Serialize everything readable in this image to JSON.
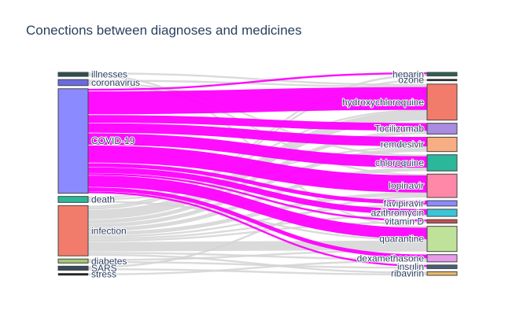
{
  "chart_data": {
    "type": "sankey",
    "title": "Conections between diagnoses and medicines",
    "highlight_color": "#ff00ff",
    "neutral_link_color": "#d3d3d3",
    "sources": [
      {
        "name": "illnesses",
        "value": 2,
        "color": "#2f4f4f"
      },
      {
        "name": "coronavirus",
        "value": 3,
        "color": "#6a6ae0"
      },
      {
        "name": "COVID-19",
        "value": 52,
        "color": "#8b8bff"
      },
      {
        "name": "death",
        "value": 3,
        "color": "#2bb89a"
      },
      {
        "name": "infection",
        "value": 25,
        "color": "#f27c6b"
      },
      {
        "name": "diabetes",
        "value": 2,
        "color": "#a4c96f"
      },
      {
        "name": "SARS",
        "value": 2,
        "color": "#3d4a5c"
      },
      {
        "name": "stress",
        "value": 1,
        "color": "#222222"
      }
    ],
    "targets": [
      {
        "name": "heparin",
        "value": 2,
        "color": "#2f5f56"
      },
      {
        "name": "ozone",
        "value": 1,
        "color": "#222222"
      },
      {
        "name": "hydroxychloroquine",
        "value": 20,
        "color": "#f27c6b"
      },
      {
        "name": "Tocilizumab",
        "value": 6,
        "color": "#a98be0"
      },
      {
        "name": "remdesivir",
        "value": 8,
        "color": "#f7ae82"
      },
      {
        "name": "chloroquine",
        "value": 9,
        "color": "#2bb89a"
      },
      {
        "name": "lopinavir",
        "value": 13,
        "color": "#ff88a8"
      },
      {
        "name": "favipiravir",
        "value": 3,
        "color": "#8b8bff"
      },
      {
        "name": "azithromycin",
        "value": 4,
        "color": "#3ac6d8"
      },
      {
        "name": "vitamin D",
        "value": 2,
        "color": "#c0504d"
      },
      {
        "name": "quarantine",
        "value": 14,
        "color": "#bfe29a"
      },
      {
        "name": "dexamethasone",
        "value": 4,
        "color": "#e89be8"
      },
      {
        "name": "insulin",
        "value": 2,
        "color": "#46607a"
      },
      {
        "name": "ribavirin",
        "value": 2,
        "color": "#e8b96a"
      }
    ],
    "links": [
      {
        "source": "illnesses",
        "target": "hydroxychloroquine",
        "value": 1
      },
      {
        "source": "illnesses",
        "target": "quarantine",
        "value": 1
      },
      {
        "source": "coronavirus",
        "target": "hydroxychloroquine",
        "value": 1
      },
      {
        "source": "coronavirus",
        "target": "chloroquine",
        "value": 1
      },
      {
        "source": "coronavirus",
        "target": "lopinavir",
        "value": 1
      },
      {
        "source": "COVID-19",
        "target": "heparin",
        "value": 1,
        "highlight": true
      },
      {
        "source": "COVID-19",
        "target": "hydroxychloroquine",
        "value": 12,
        "highlight": true
      },
      {
        "source": "COVID-19",
        "target": "Tocilizumab",
        "value": 4,
        "highlight": true
      },
      {
        "source": "COVID-19",
        "target": "remdesivir",
        "value": 5,
        "highlight": true
      },
      {
        "source": "COVID-19",
        "target": "chloroquine",
        "value": 6,
        "highlight": true
      },
      {
        "source": "COVID-19",
        "target": "lopinavir",
        "value": 9,
        "highlight": true
      },
      {
        "source": "COVID-19",
        "target": "favipiravir",
        "value": 2,
        "highlight": true
      },
      {
        "source": "COVID-19",
        "target": "azithromycin",
        "value": 3,
        "highlight": true
      },
      {
        "source": "COVID-19",
        "target": "vitamin D",
        "value": 1,
        "highlight": true
      },
      {
        "source": "COVID-19",
        "target": "quarantine",
        "value": 6,
        "highlight": true
      },
      {
        "source": "COVID-19",
        "target": "dexamethasone",
        "value": 2,
        "highlight": true
      },
      {
        "source": "COVID-19",
        "target": "insulin",
        "value": 1,
        "highlight": true
      },
      {
        "source": "death",
        "target": "hydroxychloroquine",
        "value": 1
      },
      {
        "source": "death",
        "target": "remdesivir",
        "value": 1
      },
      {
        "source": "death",
        "target": "quarantine",
        "value": 1
      },
      {
        "source": "infection",
        "target": "heparin",
        "value": 1
      },
      {
        "source": "infection",
        "target": "ozone",
        "value": 1
      },
      {
        "source": "infection",
        "target": "hydroxychloroquine",
        "value": 5
      },
      {
        "source": "infection",
        "target": "Tocilizumab",
        "value": 2
      },
      {
        "source": "infection",
        "target": "remdesivir",
        "value": 2
      },
      {
        "source": "infection",
        "target": "chloroquine",
        "value": 2
      },
      {
        "source": "infection",
        "target": "lopinavir",
        "value": 2
      },
      {
        "source": "infection",
        "target": "favipiravir",
        "value": 1
      },
      {
        "source": "infection",
        "target": "azithromycin",
        "value": 1
      },
      {
        "source": "infection",
        "target": "quarantine",
        "value": 5
      },
      {
        "source": "infection",
        "target": "dexamethasone",
        "value": 1
      },
      {
        "source": "infection",
        "target": "vitamin D",
        "value": 1
      },
      {
        "source": "infection",
        "target": "ribavirin",
        "value": 1
      },
      {
        "source": "diabetes",
        "target": "quarantine",
        "value": 1
      },
      {
        "source": "diabetes",
        "target": "insulin",
        "value": 1
      },
      {
        "source": "SARS",
        "target": "lopinavir",
        "value": 1
      },
      {
        "source": "SARS",
        "target": "ribavirin",
        "value": 1
      },
      {
        "source": "stress",
        "target": "dexamethasone",
        "value": 1
      }
    ]
  }
}
